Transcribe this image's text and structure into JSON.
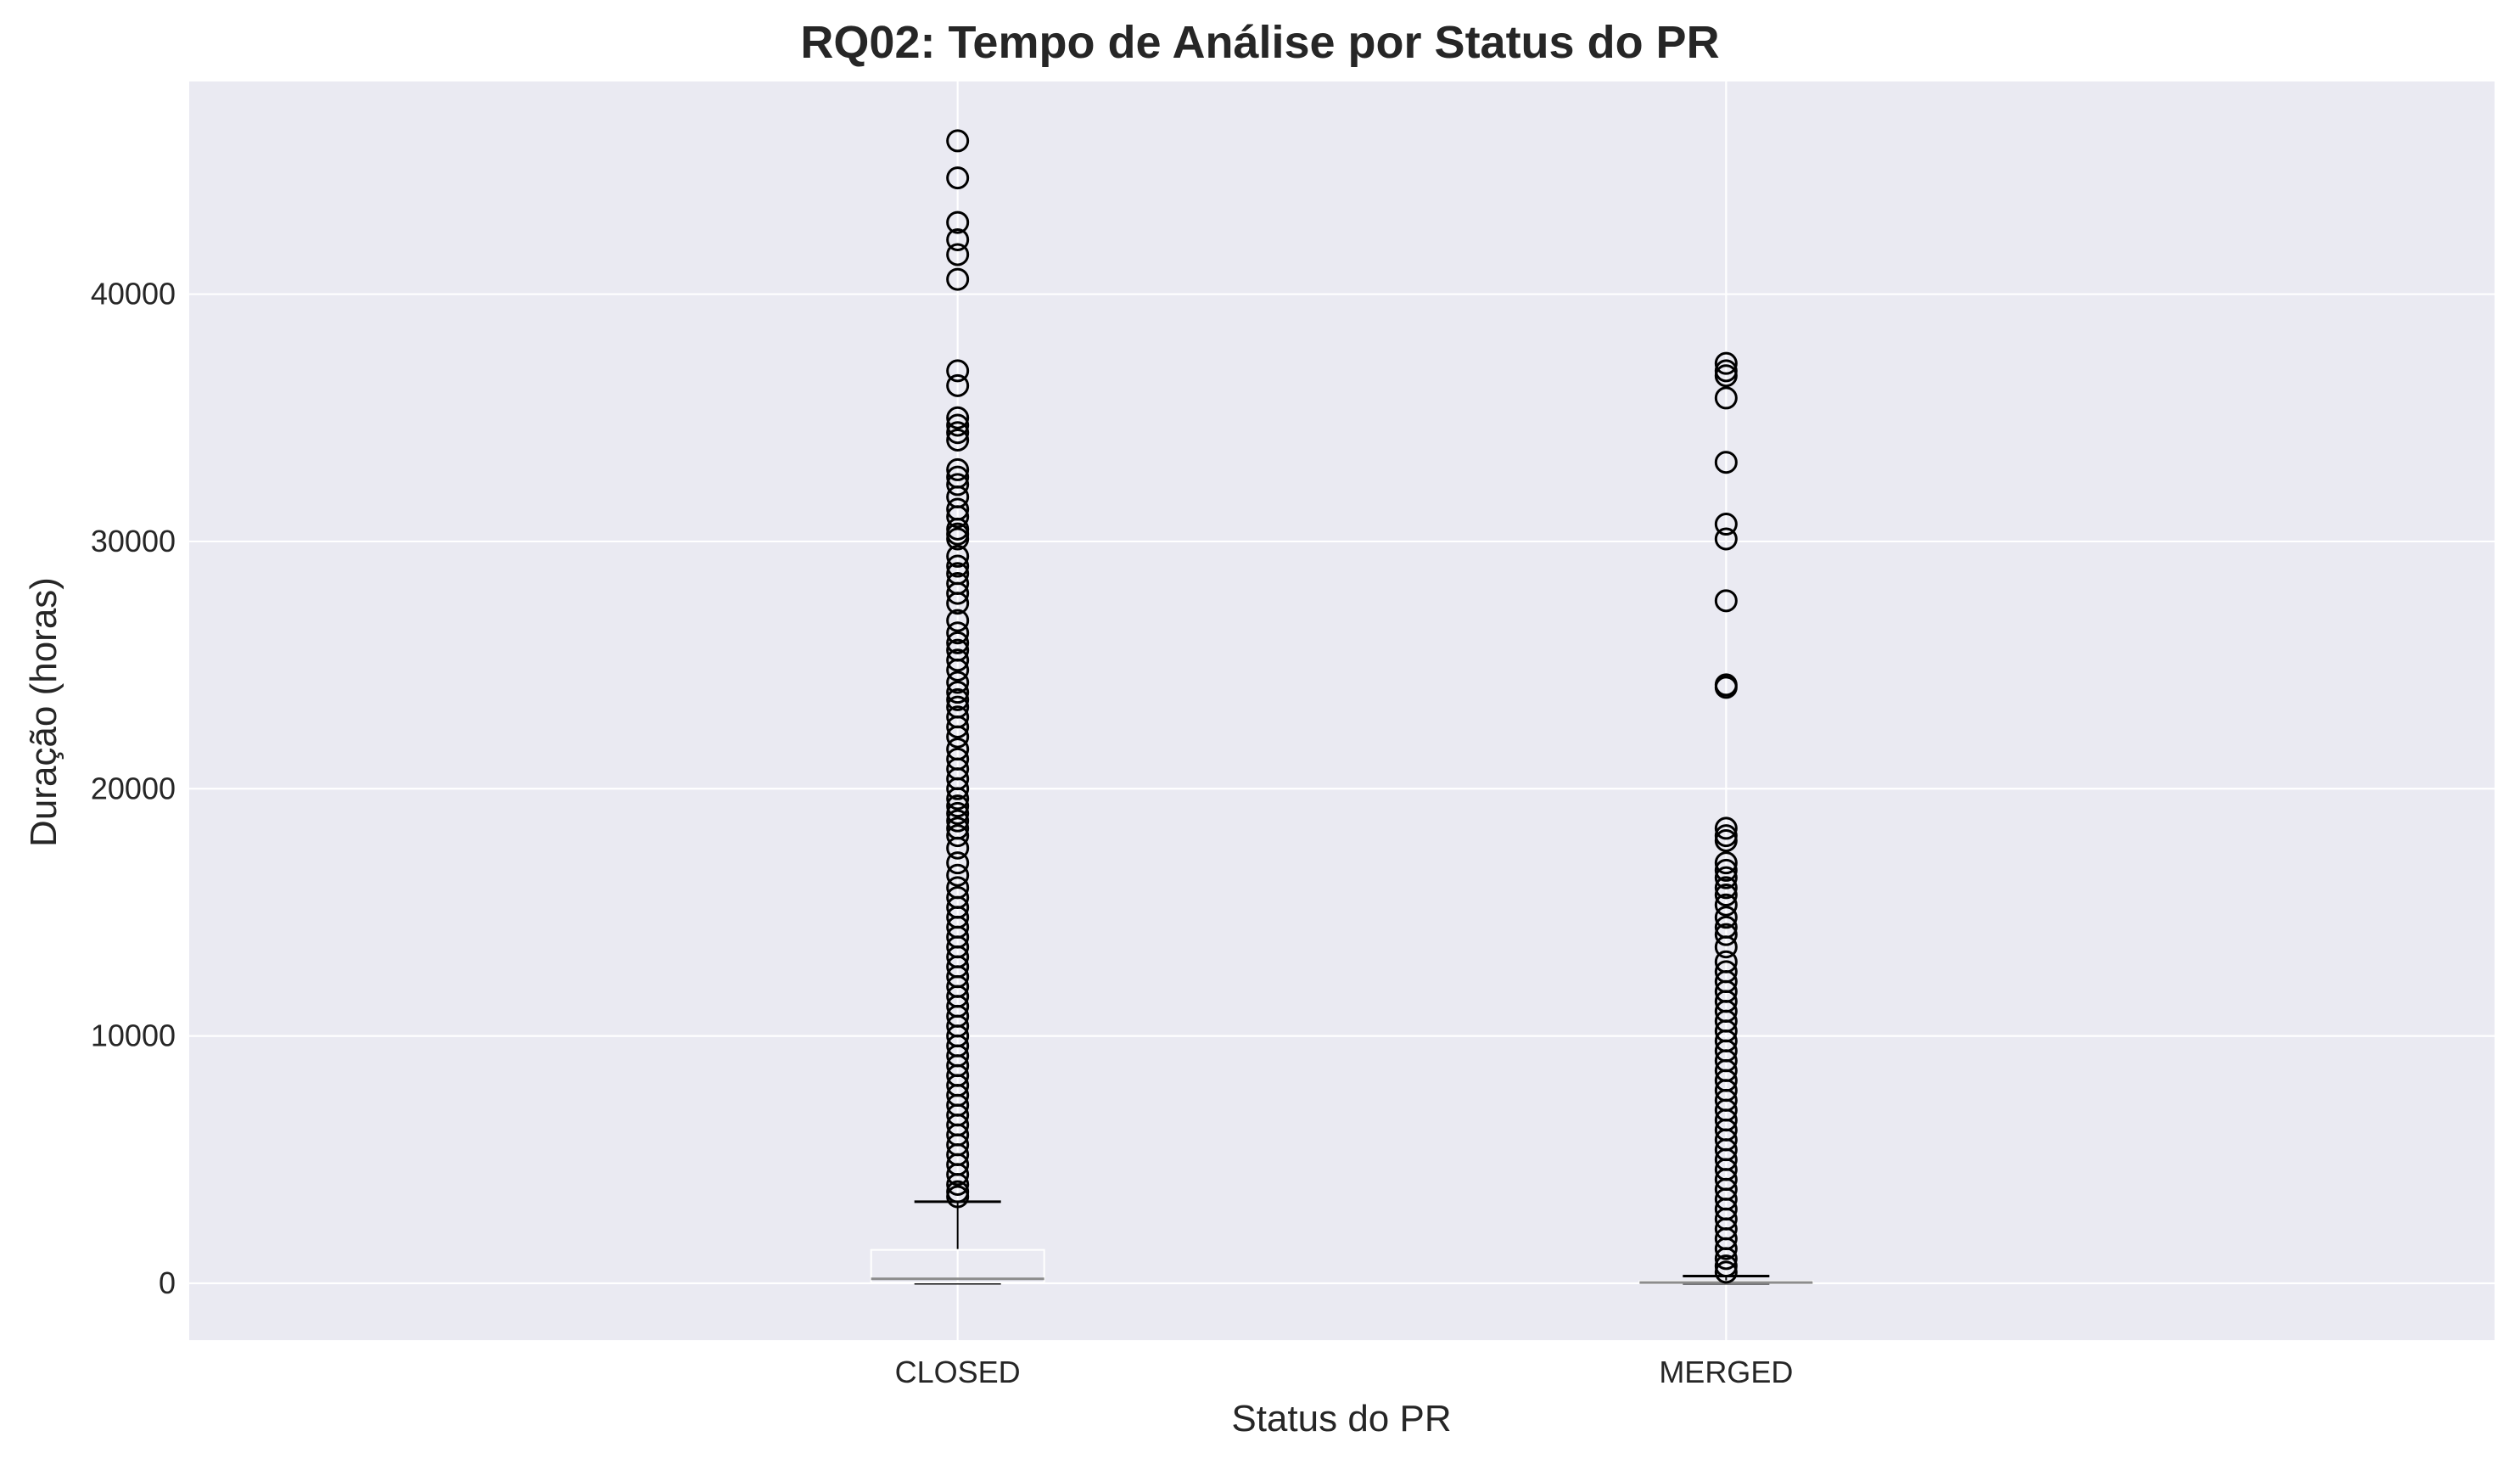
{
  "chart_data": {
    "type": "box",
    "title": "RQ02: Tempo de Análise por Status do PR",
    "xlabel": "Status do PR",
    "ylabel": "Duração (horas)",
    "categories": [
      "CLOSED",
      "MERGED"
    ],
    "ylim": [
      -2300,
      48600
    ],
    "yticks": [
      0,
      10000,
      20000,
      30000,
      40000
    ],
    "grid": true,
    "colors": {
      "background": "#eaeaf2",
      "grid": "#ffffff",
      "text": "#262626",
      "median": "#8c8c8c",
      "box": "#ffffff",
      "outlier": "#000000"
    },
    "boxes": [
      {
        "category": "CLOSED",
        "whisker_low": 0,
        "q1": 30,
        "median": 180,
        "q3": 1350,
        "whisker_high": 3300,
        "outliers": [
          46200,
          44700,
          42900,
          42200,
          41600,
          40600,
          36900,
          36300,
          35000,
          34700,
          34400,
          34100,
          32900,
          32600,
          32300,
          31800,
          31300,
          31000,
          30500,
          30300,
          30100,
          29400,
          29000,
          28700,
          28300,
          27900,
          27500,
          26800,
          26300,
          25900,
          25600,
          25200,
          24800,
          24300,
          23900,
          23600,
          23300,
          22900,
          22500,
          22100,
          21600,
          21200,
          20800,
          20400,
          20000,
          19600,
          19300,
          19000,
          18700,
          18400,
          18100,
          17600,
          17000,
          16500,
          16000,
          15600,
          15200,
          14800,
          14400,
          14000,
          13600,
          13200,
          12800,
          12400,
          12000,
          11600,
          11200,
          10800,
          10400,
          10000,
          9600,
          9200,
          8800,
          8400,
          8000,
          7600,
          7200,
          6800,
          6400,
          6000,
          5600,
          5200,
          4800,
          4400,
          4000,
          3700,
          3500
        ]
      },
      {
        "category": "MERGED",
        "whisker_low": 0,
        "q1": 10,
        "median": 30,
        "q3": 80,
        "whisker_high": 290,
        "outliers": [
          37200,
          36900,
          36700,
          35800,
          33200,
          30700,
          30100,
          27600,
          24200,
          24100,
          18400,
          18100,
          17900,
          17000,
          16700,
          16400,
          16000,
          15700,
          15300,
          14800,
          14400,
          14100,
          13600,
          13000,
          12600,
          12200,
          11800,
          11400,
          11000,
          10600,
          10200,
          9800,
          9400,
          9000,
          8600,
          8200,
          7800,
          7400,
          7000,
          6600,
          6200,
          5800,
          5400,
          5000,
          4600,
          4200,
          3800,
          3400,
          3000,
          2600,
          2200,
          1800,
          1400,
          1000,
          700,
          450
        ]
      }
    ]
  }
}
